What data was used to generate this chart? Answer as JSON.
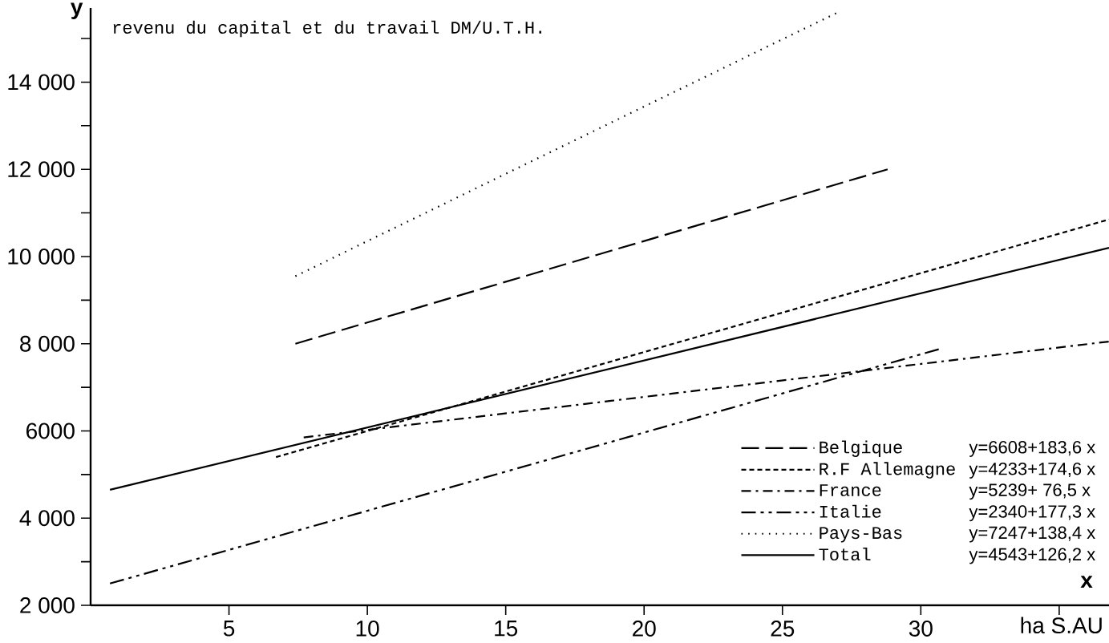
{
  "chart_data": {
    "type": "line",
    "title": "revenu du capital et du travail DM/U.T.H.",
    "xlabel": "x",
    "ylabel": "y",
    "annotations": [
      "ha S.AU",
      "y=6608+183,6 x",
      "y=4233+174,6 x",
      "y=5239+ 76,5 x",
      "y=2340+177,3 x",
      "y=7247+138,4 x",
      "y=4543+126,2 x"
    ],
    "xlim": [
      0,
      36.8
    ],
    "ylim": [
      2000,
      15700
    ],
    "xticks": [
      5,
      10,
      15,
      20,
      25,
      30,
      {
        "value": 35,
        "label": null
      }
    ],
    "yticks": [
      {
        "value": 2000,
        "label": "2 000"
      },
      {
        "value": 3000,
        "label": null
      },
      {
        "value": 4000,
        "label": "4 000"
      },
      {
        "value": 5000,
        "label": null
      },
      6000,
      {
        "value": 7000,
        "label": null
      },
      {
        "value": 8000,
        "label": "8 000"
      },
      {
        "value": 9000,
        "label": null
      },
      {
        "value": 10000,
        "label": "10 000"
      },
      {
        "value": 11000,
        "label": null
      },
      {
        "value": 12000,
        "label": "12 000"
      },
      {
        "value": 13000,
        "label": null
      },
      {
        "value": 14000,
        "label": "14 000"
      },
      {
        "value": 15000,
        "label": null
      }
    ],
    "legend": "bottom right",
    "series": [
      {
        "name": "Belgique",
        "color": "#000000",
        "line_style": "dashed",
        "x": [
          7.4,
          28.8
        ],
        "values": [
          8000,
          12000
        ]
      },
      {
        "name": "R.F Allemagne",
        "color": "#000000",
        "line_style": "dashed",
        "x": [
          6.7,
          36.8
        ],
        "values": [
          5400,
          10850
        ]
      },
      {
        "name": "France",
        "color": "#000000",
        "line_style": "dashed",
        "x": [
          7.7,
          36.8
        ],
        "values": [
          5850,
          8050
        ]
      },
      {
        "name": "Italie",
        "color": "#000000",
        "line_style": "dashed",
        "x": [
          0.7,
          30.8
        ],
        "values": [
          2500,
          7900
        ]
      },
      {
        "name": "Pays-Bas",
        "color": "#000000",
        "line_style": "dotted",
        "x": [
          7.4,
          27.0
        ],
        "values": [
          9550,
          15600
        ]
      },
      {
        "name": "Total",
        "color": "#000000",
        "line_style": "solid",
        "x": [
          0.7,
          36.8
        ],
        "values": [
          4650,
          10200
        ]
      }
    ]
  }
}
